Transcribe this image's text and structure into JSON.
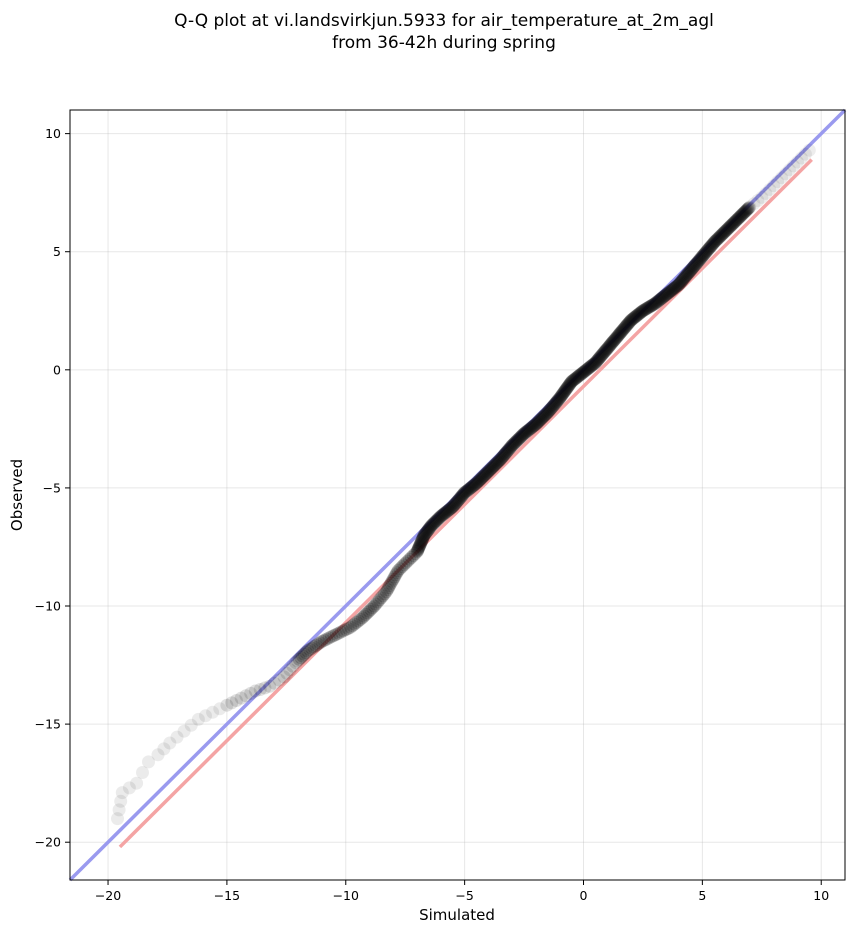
{
  "chart_data": {
    "type": "scatter",
    "title": [
      "Q-Q plot at vi.landsvirkjun.5933 for air_temperature_at_2m_agl",
      "from 36-42h during spring"
    ],
    "xlabel": "Simulated",
    "ylabel": "Observed",
    "xlim": [
      -21.6,
      11.0
    ],
    "ylim": [
      -21.6,
      11.0
    ],
    "xticks": [
      -20,
      -15,
      -10,
      -5,
      0,
      5,
      10
    ],
    "yticks": [
      -20,
      -15,
      -10,
      -5,
      0,
      5,
      10
    ],
    "xtick_labels": [
      "−20",
      "−15",
      "−10",
      "−5",
      "0",
      "5",
      "10"
    ],
    "ytick_labels": [
      "−20",
      "−15",
      "−10",
      "−5",
      "0",
      "5",
      "10"
    ],
    "grid": true,
    "reference_lines": [
      {
        "color": "#9a9aef",
        "x": [
          -21.6,
          11.0
        ],
        "y": [
          -21.6,
          11.0
        ]
      },
      {
        "color": "#f4a4a4",
        "x": [
          -19.5,
          9.6
        ],
        "y": [
          -20.2,
          8.9
        ]
      }
    ],
    "point_color": "#000000",
    "quantile_curve": {
      "x": [
        -19.6,
        -19.4,
        -18.8,
        -18.3,
        -17.9,
        -17.4,
        -16.8,
        -16.2,
        -15.6,
        -15.0,
        -14.4,
        -13.8,
        -13.2,
        -12.6,
        -12.1,
        -11.6,
        -11.0,
        -10.4,
        -9.8,
        -9.3,
        -8.8,
        -8.3,
        -7.8,
        -7.4,
        -7.0,
        -6.7,
        -6.4,
        -6.0,
        -5.5,
        -5.0,
        -4.5,
        -4.0,
        -3.5,
        -3.0,
        -2.5,
        -2.0,
        -1.5,
        -1.0,
        -0.5,
        0.0,
        0.5,
        1.0,
        1.5,
        2.0,
        2.5,
        3.0,
        3.5,
        4.0,
        4.5,
        5.0,
        5.5,
        6.0,
        6.5,
        7.0,
        7.5,
        8.0,
        8.5,
        9.0,
        9.5
      ],
      "y": [
        -19.0,
        -17.9,
        -17.5,
        -16.6,
        -16.3,
        -15.8,
        -15.3,
        -14.8,
        -14.5,
        -14.2,
        -13.9,
        -13.6,
        -13.4,
        -13.0,
        -12.4,
        -11.9,
        -11.5,
        -11.2,
        -10.9,
        -10.5,
        -10.0,
        -9.4,
        -8.5,
        -8.1,
        -7.7,
        -7.0,
        -6.6,
        -6.2,
        -5.8,
        -5.2,
        -4.8,
        -4.3,
        -3.8,
        -3.2,
        -2.7,
        -2.3,
        -1.8,
        -1.2,
        -0.5,
        -0.1,
        0.3,
        0.9,
        1.5,
        2.1,
        2.5,
        2.8,
        3.2,
        3.6,
        4.2,
        4.8,
        5.4,
        5.9,
        6.4,
        6.9,
        7.3,
        7.8,
        8.3,
        8.8,
        9.3
      ]
    }
  }
}
